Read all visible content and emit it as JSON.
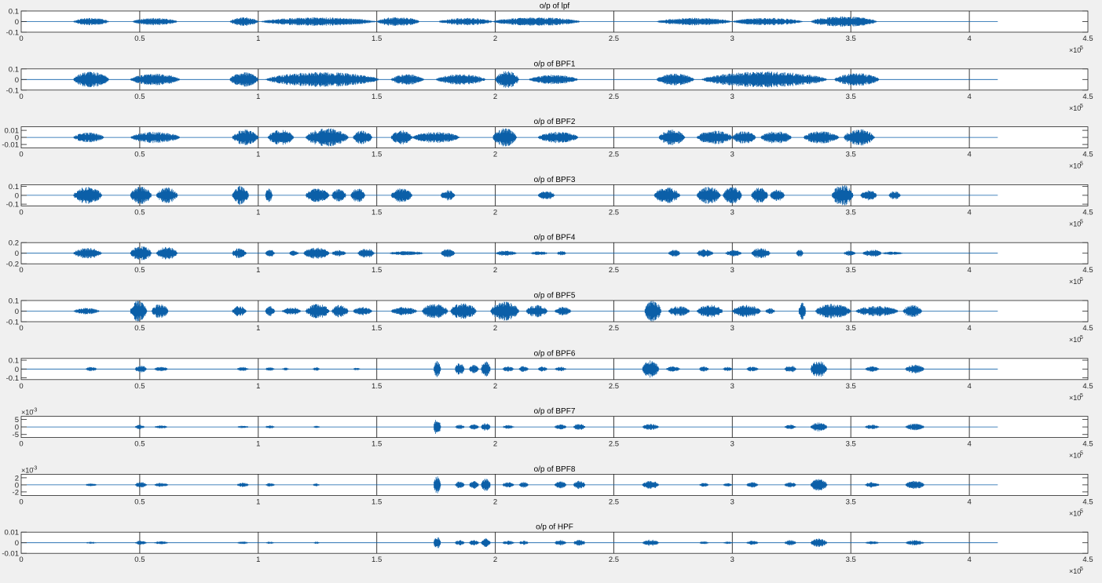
{
  "figure": {
    "background": "#f0f0f0",
    "line_color": "#0b5fa8",
    "axes_color": "#262626"
  },
  "chart_data": [
    {
      "type": "line",
      "title": "o/p of lpf",
      "xlim": [
        0,
        450000
      ],
      "xticks": [
        0,
        0.5,
        1,
        1.5,
        2,
        2.5,
        3,
        3.5,
        4,
        4.5
      ],
      "x_exponent_label": "×10",
      "x_exponent": "5",
      "ylim": [
        -0.1,
        0.1
      ],
      "yticks": [
        "0.1",
        "0",
        "-0.1"
      ],
      "y_tick_values": [
        0.1,
        0,
        -0.1
      ],
      "y_exponent": "",
      "grid": "x",
      "signal_length": 412000,
      "bursts": [
        [
          22000,
          37000,
          0.035
        ],
        [
          47000,
          66000,
          0.035
        ],
        [
          88000,
          100000,
          0.04
        ],
        [
          101000,
          150000,
          0.04
        ],
        [
          150000,
          168000,
          0.045
        ],
        [
          176000,
          199000,
          0.035
        ],
        [
          199000,
          236000,
          0.04
        ],
        [
          268000,
          300000,
          0.035
        ],
        [
          300000,
          330000,
          0.035
        ],
        [
          333000,
          361000,
          0.05
        ]
      ]
    },
    {
      "type": "line",
      "title": "o/p of BPF1",
      "xlim": [
        0,
        450000
      ],
      "xticks": [
        0,
        0.5,
        1,
        1.5,
        2,
        2.5,
        3,
        3.5,
        4,
        4.5
      ],
      "x_exponent_label": "×10",
      "x_exponent": "5",
      "ylim": [
        -0.1,
        0.1
      ],
      "yticks": [
        "0.1",
        "0",
        "-0.1"
      ],
      "y_tick_values": [
        0.1,
        0,
        -0.1
      ],
      "y_exponent": "",
      "grid": "x",
      "signal_length": 412000,
      "bursts": [
        [
          22000,
          37000,
          0.075
        ],
        [
          46000,
          67000,
          0.055
        ],
        [
          88000,
          100000,
          0.07
        ],
        [
          103000,
          151000,
          0.07
        ],
        [
          156000,
          170000,
          0.05
        ],
        [
          175000,
          196000,
          0.05
        ],
        [
          200000,
          210000,
          0.08
        ],
        [
          214000,
          235000,
          0.045
        ],
        [
          268000,
          284000,
          0.055
        ],
        [
          287000,
          340000,
          0.075
        ],
        [
          343000,
          362000,
          0.06
        ]
      ]
    },
    {
      "type": "line",
      "title": "o/p of BPF2",
      "xlim": [
        0,
        450000
      ],
      "xticks": [
        0,
        0.5,
        1,
        1.5,
        2,
        2.5,
        3,
        3.5,
        4,
        4.5
      ],
      "x_exponent_label": "×10",
      "x_exponent": "5",
      "ylim": [
        -0.015,
        0.015
      ],
      "yticks": [
        "0.01",
        "0",
        "-0.01"
      ],
      "y_tick_values": [
        0.01,
        0,
        -0.01
      ],
      "y_exponent": "",
      "grid": "x",
      "signal_length": 412000,
      "bursts": [
        [
          22000,
          35000,
          0.007
        ],
        [
          46000,
          67000,
          0.008
        ],
        [
          89000,
          100000,
          0.011
        ],
        [
          104000,
          115000,
          0.011
        ],
        [
          120000,
          138000,
          0.013
        ],
        [
          140000,
          148000,
          0.01
        ],
        [
          156000,
          165000,
          0.01
        ],
        [
          165000,
          185000,
          0.008
        ],
        [
          199000,
          209000,
          0.013
        ],
        [
          218000,
          235000,
          0.008
        ],
        [
          269000,
          280000,
          0.011
        ],
        [
          285000,
          300000,
          0.01
        ],
        [
          300000,
          310000,
          0.009
        ],
        [
          312000,
          325000,
          0.009
        ],
        [
          330000,
          345000,
          0.009
        ],
        [
          347000,
          360000,
          0.012
        ]
      ]
    },
    {
      "type": "line",
      "title": "o/p of BPF3",
      "xlim": [
        0,
        450000
      ],
      "xticks": [
        0,
        0.5,
        1,
        1.5,
        2,
        2.5,
        3,
        3.5,
        4,
        4.5
      ],
      "x_exponent_label": "×10",
      "x_exponent": "5",
      "ylim": [
        -0.12,
        0.12
      ],
      "yticks": [
        "0.1",
        "0",
        "-0.1"
      ],
      "y_tick_values": [
        0.1,
        0,
        -0.1
      ],
      "y_exponent": "",
      "grid": "x",
      "signal_length": 412000,
      "bursts": [
        [
          22000,
          34000,
          0.1
        ],
        [
          46000,
          55000,
          0.1
        ],
        [
          57000,
          66000,
          0.09
        ],
        [
          89000,
          96000,
          0.11
        ],
        [
          103000,
          106000,
          0.08
        ],
        [
          120000,
          130000,
          0.08
        ],
        [
          131000,
          137000,
          0.07
        ],
        [
          139000,
          145000,
          0.08
        ],
        [
          156000,
          165000,
          0.08
        ],
        [
          177000,
          183000,
          0.06
        ],
        [
          218000,
          225000,
          0.05
        ],
        [
          267000,
          278000,
          0.09
        ],
        [
          285000,
          295000,
          0.1
        ],
        [
          296000,
          304000,
          0.1
        ],
        [
          308000,
          315000,
          0.09
        ],
        [
          316000,
          322000,
          0.07
        ],
        [
          342000,
          351000,
          0.12
        ],
        [
          354000,
          361000,
          0.06
        ],
        [
          366000,
          371000,
          0.05
        ]
      ]
    },
    {
      "type": "line",
      "title": "o/p of BPF4",
      "xlim": [
        0,
        450000
      ],
      "xticks": [
        0,
        0.5,
        1,
        1.5,
        2,
        2.5,
        3,
        3.5,
        4,
        4.5
      ],
      "x_exponent_label": "×10",
      "x_exponent": "5",
      "ylim": [
        -0.2,
        0.2
      ],
      "yticks": [
        "0.2",
        "0",
        "-0.2"
      ],
      "y_tick_values": [
        0.2,
        0,
        -0.2
      ],
      "y_exponent": "",
      "grid": "x",
      "signal_length": 412000,
      "bursts": [
        [
          22000,
          34000,
          0.1
        ],
        [
          46000,
          55000,
          0.14
        ],
        [
          57000,
          66000,
          0.12
        ],
        [
          89000,
          95000,
          0.1
        ],
        [
          103000,
          107000,
          0.07
        ],
        [
          113000,
          117000,
          0.05
        ],
        [
          119000,
          130000,
          0.11
        ],
        [
          131000,
          137000,
          0.06
        ],
        [
          142000,
          149000,
          0.09
        ],
        [
          155000,
          170000,
          0.04
        ],
        [
          177000,
          183000,
          0.08
        ],
        [
          200000,
          209000,
          0.05
        ],
        [
          215000,
          222000,
          0.04
        ],
        [
          226000,
          230000,
          0.04
        ],
        [
          273000,
          278000,
          0.07
        ],
        [
          285000,
          292000,
          0.08
        ],
        [
          297000,
          304000,
          0.06
        ],
        [
          308000,
          316000,
          0.1
        ],
        [
          327000,
          330000,
          0.07
        ],
        [
          347000,
          352000,
          0.05
        ],
        [
          355000,
          363000,
          0.07
        ],
        [
          363000,
          372000,
          0.03
        ]
      ]
    },
    {
      "type": "line",
      "title": "o/p of BPF5",
      "xlim": [
        0,
        450000
      ],
      "xticks": [
        0,
        0.5,
        1,
        1.5,
        2,
        2.5,
        3,
        3.5,
        4,
        4.5
      ],
      "x_exponent_label": "×10",
      "x_exponent": "5",
      "ylim": [
        -0.1,
        0.1
      ],
      "yticks": [
        "0.1",
        "0",
        "-0.1"
      ],
      "y_tick_values": [
        0.1,
        0,
        -0.1
      ],
      "y_exponent": "",
      "grid": "x",
      "signal_length": 412000,
      "bursts": [
        [
          22000,
          33000,
          0.03
        ],
        [
          46000,
          53000,
          0.1
        ],
        [
          55000,
          62000,
          0.07
        ],
        [
          89000,
          95000,
          0.05
        ],
        [
          103000,
          107000,
          0.05
        ],
        [
          110000,
          118000,
          0.035
        ],
        [
          120000,
          130000,
          0.07
        ],
        [
          131000,
          138000,
          0.06
        ],
        [
          140000,
          148000,
          0.04
        ],
        [
          156000,
          167000,
          0.04
        ],
        [
          169000,
          180000,
          0.07
        ],
        [
          181000,
          192000,
          0.08
        ],
        [
          198000,
          210000,
          0.09
        ],
        [
          213000,
          222000,
          0.06
        ],
        [
          225000,
          232000,
          0.04
        ],
        [
          263000,
          270000,
          0.1
        ],
        [
          273000,
          282000,
          0.05
        ],
        [
          285000,
          296000,
          0.06
        ],
        [
          300000,
          312000,
          0.06
        ],
        [
          314000,
          318000,
          0.03
        ],
        [
          328000,
          331000,
          0.08
        ],
        [
          335000,
          350000,
          0.07
        ],
        [
          352000,
          370000,
          0.05
        ],
        [
          372000,
          380000,
          0.06
        ]
      ]
    },
    {
      "type": "line",
      "title": "o/p of BPF6",
      "xlim": [
        0,
        450000
      ],
      "xticks": [
        0,
        0.5,
        1,
        1.5,
        2,
        2.5,
        3,
        3.5,
        4,
        4.5
      ],
      "x_exponent_label": "×10",
      "x_exponent": "5",
      "ylim": [
        -0.12,
        0.12
      ],
      "yticks": [
        "0.1",
        "0",
        "-0.1"
      ],
      "y_tick_values": [
        0.1,
        0,
        -0.1
      ],
      "y_exponent": "",
      "grid": "x",
      "signal_length": 412000,
      "bursts": [
        [
          27000,
          32000,
          0.025
        ],
        [
          48000,
          53000,
          0.04
        ],
        [
          56000,
          62000,
          0.025
        ],
        [
          91000,
          96000,
          0.025
        ],
        [
          103000,
          107000,
          0.02
        ],
        [
          110000,
          113000,
          0.015
        ],
        [
          123000,
          126000,
          0.02
        ],
        [
          140000,
          143000,
          0.015
        ],
        [
          174000,
          177000,
          0.1
        ],
        [
          183000,
          187000,
          0.07
        ],
        [
          189000,
          193000,
          0.05
        ],
        [
          194000,
          198000,
          0.09
        ],
        [
          203000,
          208000,
          0.03
        ],
        [
          210000,
          214000,
          0.04
        ],
        [
          218000,
          222000,
          0.03
        ],
        [
          225000,
          230000,
          0.025
        ],
        [
          262000,
          269000,
          0.1
        ],
        [
          272000,
          278000,
          0.03
        ],
        [
          286000,
          290000,
          0.03
        ],
        [
          296000,
          300000,
          0.025
        ],
        [
          306000,
          311000,
          0.03
        ],
        [
          322000,
          327000,
          0.04
        ],
        [
          333000,
          340000,
          0.1
        ],
        [
          356000,
          362000,
          0.03
        ],
        [
          373000,
          381000,
          0.05
        ]
      ]
    },
    {
      "type": "line",
      "title": "o/p of BPF7",
      "xlim": [
        0,
        450000
      ],
      "xticks": [
        0,
        0.5,
        1,
        1.5,
        2,
        2.5,
        3,
        3.5,
        4,
        4.5
      ],
      "x_exponent_label": "×10",
      "x_exponent": "5",
      "ylim": [
        -0.007,
        0.007
      ],
      "yticks": [
        "5",
        "0",
        "-5"
      ],
      "y_tick_values": [
        0.005,
        0,
        -0.005
      ],
      "y_exponent_label": "×10",
      "y_exponent": "-3",
      "grid": "x",
      "signal_length": 412000,
      "bursts": [
        [
          48000,
          52000,
          0.0015
        ],
        [
          56000,
          62000,
          0.001
        ],
        [
          91000,
          96000,
          0.0008
        ],
        [
          103000,
          107000,
          0.001
        ],
        [
          123000,
          126000,
          0.0008
        ],
        [
          174000,
          177000,
          0.0055
        ],
        [
          183000,
          187000,
          0.0015
        ],
        [
          189000,
          193000,
          0.0018
        ],
        [
          194000,
          198000,
          0.0025
        ],
        [
          203000,
          208000,
          0.0012
        ],
        [
          225000,
          230000,
          0.0018
        ],
        [
          233000,
          238000,
          0.0022
        ],
        [
          262000,
          269000,
          0.002
        ],
        [
          322000,
          327000,
          0.0015
        ],
        [
          333000,
          340000,
          0.003
        ],
        [
          356000,
          362000,
          0.0015
        ],
        [
          373000,
          381000,
          0.0022
        ]
      ]
    },
    {
      "type": "line",
      "title": "o/p of BPF8",
      "xlim": [
        0,
        450000
      ],
      "xticks": [
        0,
        0.5,
        1,
        1.5,
        2,
        2.5,
        3,
        3.5,
        4,
        4.5
      ],
      "x_exponent_label": "×10",
      "x_exponent": "5",
      "ylim": [
        -0.003,
        0.003
      ],
      "yticks": [
        "2",
        "0",
        "-2"
      ],
      "y_tick_values": [
        0.002,
        0,
        -0.002
      ],
      "y_exponent_label": "×10",
      "y_exponent": "-3",
      "grid": "x",
      "signal_length": 412000,
      "bursts": [
        [
          27000,
          32000,
          0.0004
        ],
        [
          48000,
          53000,
          0.0008
        ],
        [
          56000,
          62000,
          0.0006
        ],
        [
          91000,
          96000,
          0.0006
        ],
        [
          103000,
          107000,
          0.0005
        ],
        [
          123000,
          126000,
          0.0004
        ],
        [
          174000,
          177000,
          0.0025
        ],
        [
          183000,
          187000,
          0.001
        ],
        [
          189000,
          193000,
          0.0012
        ],
        [
          194000,
          198000,
          0.0018
        ],
        [
          203000,
          208000,
          0.0008
        ],
        [
          210000,
          214000,
          0.0008
        ],
        [
          225000,
          230000,
          0.001
        ],
        [
          233000,
          238000,
          0.0012
        ],
        [
          262000,
          269000,
          0.0012
        ],
        [
          286000,
          290000,
          0.0006
        ],
        [
          296000,
          300000,
          0.0005
        ],
        [
          306000,
          311000,
          0.0008
        ],
        [
          322000,
          327000,
          0.0008
        ],
        [
          333000,
          340000,
          0.0018
        ],
        [
          356000,
          362000,
          0.0008
        ],
        [
          373000,
          381000,
          0.0012
        ]
      ]
    },
    {
      "type": "line",
      "title": "o/p of HPF",
      "xlim": [
        0,
        450000
      ],
      "xticks": [
        0,
        0.5,
        1,
        1.5,
        2,
        2.5,
        3,
        3.5,
        4,
        4.5
      ],
      "x_exponent_label": "×10",
      "x_exponent": "5",
      "ylim": [
        -0.01,
        0.01
      ],
      "yticks": [
        "0.01",
        "0",
        "-0.01"
      ],
      "y_tick_values": [
        0.01,
        0,
        -0.01
      ],
      "y_exponent": "",
      "grid": "x",
      "signal_length": 412000,
      "bursts": [
        [
          27000,
          32000,
          0.001
        ],
        [
          48000,
          53000,
          0.002
        ],
        [
          56000,
          62000,
          0.0015
        ],
        [
          91000,
          96000,
          0.0012
        ],
        [
          103000,
          107000,
          0.001
        ],
        [
          123000,
          126000,
          0.001
        ],
        [
          174000,
          177000,
          0.006
        ],
        [
          183000,
          187000,
          0.0025
        ],
        [
          189000,
          193000,
          0.003
        ],
        [
          194000,
          198000,
          0.004
        ],
        [
          203000,
          208000,
          0.002
        ],
        [
          210000,
          214000,
          0.002
        ],
        [
          225000,
          230000,
          0.0025
        ],
        [
          233000,
          238000,
          0.003
        ],
        [
          262000,
          269000,
          0.003
        ],
        [
          286000,
          290000,
          0.0015
        ],
        [
          296000,
          300000,
          0.0012
        ],
        [
          306000,
          311000,
          0.002
        ],
        [
          322000,
          327000,
          0.0025
        ],
        [
          333000,
          340000,
          0.004
        ],
        [
          356000,
          362000,
          0.0015
        ],
        [
          373000,
          381000,
          0.0025
        ]
      ]
    }
  ]
}
